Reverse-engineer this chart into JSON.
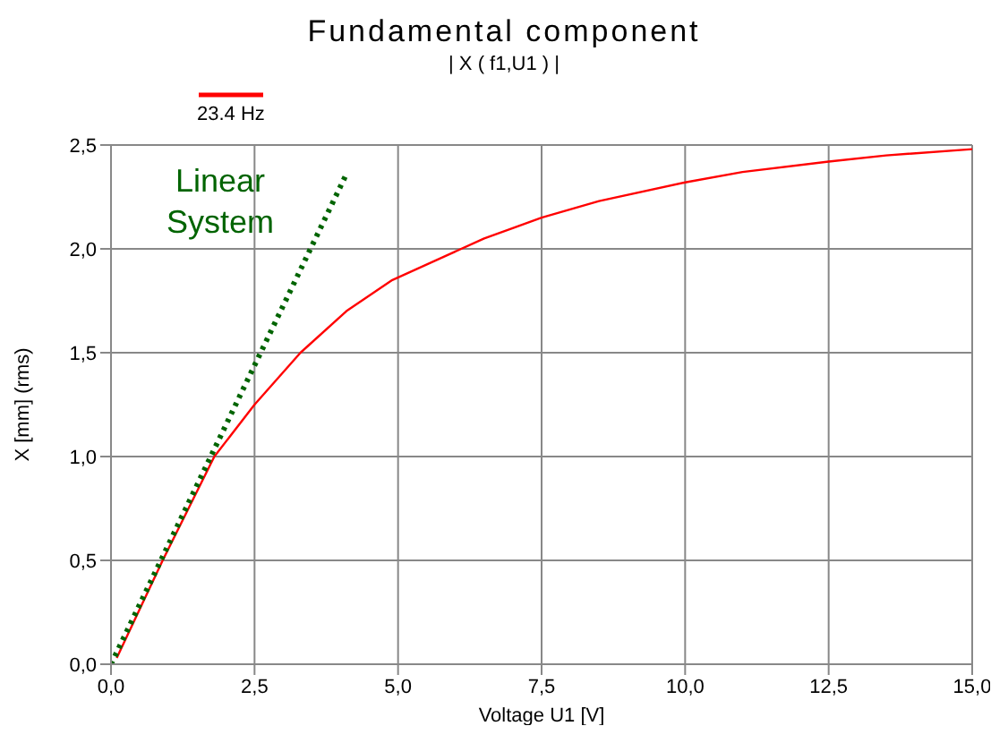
{
  "chart_data": {
    "type": "line",
    "title": "Fundamental component",
    "subtitle": "| X ( f1,U1 ) |",
    "xlabel": "Voltage U1 [V]",
    "ylabel": "X [mm] (rms)",
    "xlim": [
      0,
      15
    ],
    "ylim": [
      0,
      2.5
    ],
    "xticks": [
      {
        "value": 0,
        "label": "0,0"
      },
      {
        "value": 2.5,
        "label": "2,5"
      },
      {
        "value": 5,
        "label": "5,0"
      },
      {
        "value": 7.5,
        "label": "7,5"
      },
      {
        "value": 10,
        "label": "10,0"
      },
      {
        "value": 12.5,
        "label": "12,5"
      },
      {
        "value": 15,
        "label": "15,0"
      }
    ],
    "yticks": [
      {
        "value": 0,
        "label": "0,0"
      },
      {
        "value": 0.5,
        "label": "0,5"
      },
      {
        "value": 1,
        "label": "1,0"
      },
      {
        "value": 1.5,
        "label": "1,5"
      },
      {
        "value": 2,
        "label": "2,0"
      },
      {
        "value": 2.5,
        "label": "2,5"
      }
    ],
    "grid": true,
    "legend": "top left",
    "marker": "none",
    "series": [
      {
        "name": "23.4 Hz",
        "color": "#ff0000",
        "line_style": "solid",
        "x": [
          0.1,
          0.9,
          1.8,
          2.5,
          3.3,
          4.1,
          4.9,
          5.7,
          6.5,
          7.5,
          8.5,
          10,
          11,
          12.5,
          13.5,
          15
        ],
        "values": [
          0.03,
          0.5,
          1.0,
          1.25,
          1.5,
          1.7,
          1.85,
          1.95,
          2.05,
          2.15,
          2.23,
          2.32,
          2.37,
          2.42,
          2.45,
          2.48
        ]
      },
      {
        "name": "Linear System",
        "color": "#006400",
        "line_style": "dotted",
        "x": [
          0,
          4.1
        ],
        "values": [
          0,
          2.36
        ]
      }
    ]
  }
}
